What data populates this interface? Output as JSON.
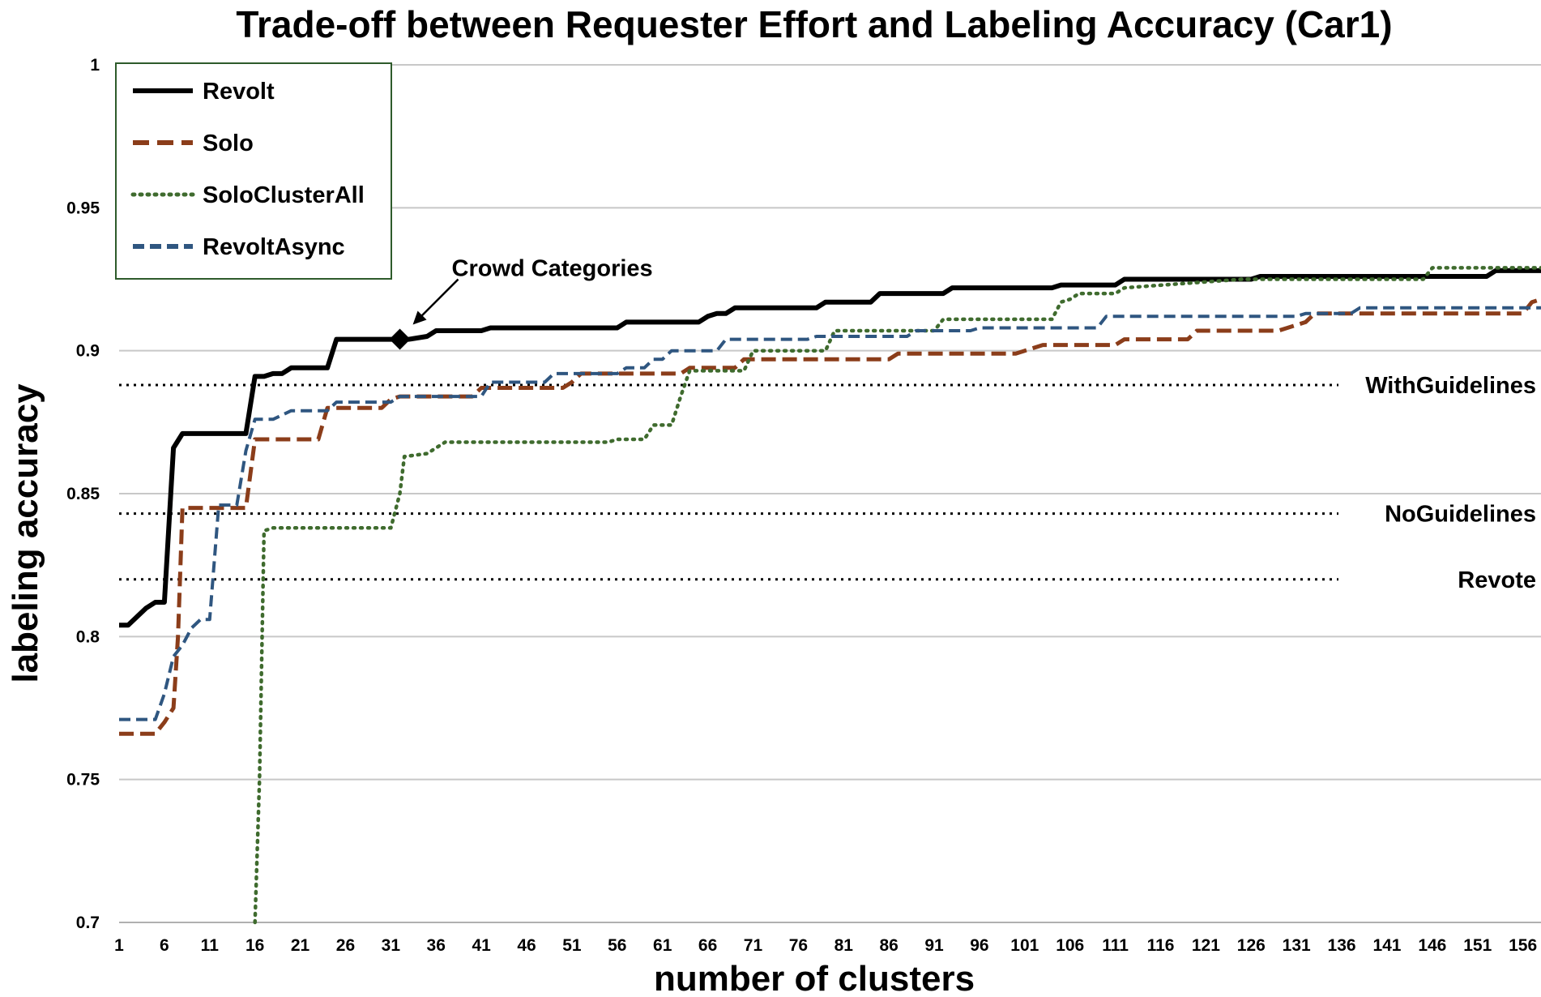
{
  "chart_data": {
    "type": "line",
    "title": "Trade-off between Requester Effort and Labeling Accuracy (Car1)",
    "xlabel": "number of clusters",
    "ylabel": "labeling accuracy",
    "xlim": [
      1,
      158
    ],
    "ylim": [
      0.7,
      1
    ],
    "x_ticks": [
      "1",
      "6",
      "11",
      "16",
      "21",
      "26",
      "31",
      "36",
      "41",
      "46",
      "51",
      "56",
      "61",
      "66",
      "71",
      "76",
      "81",
      "86",
      "91",
      "96",
      "101",
      "106",
      "111",
      "116",
      "121",
      "126",
      "131",
      "136",
      "141",
      "146",
      "151",
      "156"
    ],
    "y_ticks": [
      "0.7",
      "0.75",
      "0.8",
      "0.85",
      "0.9",
      "0.95",
      "1"
    ],
    "grid": "horizontal",
    "legend_position": "top-left",
    "series": [
      {
        "name": "Revolt",
        "color": "#000000",
        "style": "solid",
        "points": [
          [
            1,
            0.804
          ],
          [
            2,
            0.804
          ],
          [
            3,
            0.807
          ],
          [
            4,
            0.81
          ],
          [
            5,
            0.812
          ],
          [
            6,
            0.812
          ],
          [
            7,
            0.866
          ],
          [
            8,
            0.871
          ],
          [
            15,
            0.871
          ],
          [
            16,
            0.891
          ],
          [
            17,
            0.891
          ],
          [
            18,
            0.892
          ],
          [
            19,
            0.892
          ],
          [
            20,
            0.894
          ],
          [
            24,
            0.894
          ],
          [
            25,
            0.904
          ],
          [
            33,
            0.904
          ],
          [
            35,
            0.905
          ],
          [
            36,
            0.907
          ],
          [
            41,
            0.907
          ],
          [
            42,
            0.908
          ],
          [
            56,
            0.908
          ],
          [
            57,
            0.91
          ],
          [
            65,
            0.91
          ],
          [
            66,
            0.912
          ],
          [
            67,
            0.913
          ],
          [
            68,
            0.913
          ],
          [
            69,
            0.915
          ],
          [
            78,
            0.915
          ],
          [
            79,
            0.917
          ],
          [
            84,
            0.917
          ],
          [
            85,
            0.92
          ],
          [
            92,
            0.92
          ],
          [
            93,
            0.922
          ],
          [
            104,
            0.922
          ],
          [
            105,
            0.923
          ],
          [
            111,
            0.923
          ],
          [
            112,
            0.925
          ],
          [
            126,
            0.925
          ],
          [
            127,
            0.926
          ],
          [
            152,
            0.926
          ],
          [
            153,
            0.928
          ],
          [
            158,
            0.928
          ]
        ]
      },
      {
        "name": "Solo",
        "color": "#8b3d1a",
        "style": "dashed",
        "points": [
          [
            1,
            0.766
          ],
          [
            5,
            0.766
          ],
          [
            6,
            0.77
          ],
          [
            7,
            0.775
          ],
          [
            7.5,
            0.8
          ],
          [
            8,
            0.845
          ],
          [
            15,
            0.845
          ],
          [
            16,
            0.869
          ],
          [
            23,
            0.869
          ],
          [
            24,
            0.88
          ],
          [
            30,
            0.88
          ],
          [
            31,
            0.883
          ],
          [
            32,
            0.884
          ],
          [
            40,
            0.884
          ],
          [
            41,
            0.887
          ],
          [
            50,
            0.887
          ],
          [
            51,
            0.889
          ],
          [
            52,
            0.892
          ],
          [
            63,
            0.892
          ],
          [
            64,
            0.894
          ],
          [
            69,
            0.894
          ],
          [
            70,
            0.897
          ],
          [
            86,
            0.897
          ],
          [
            87,
            0.899
          ],
          [
            100,
            0.899
          ],
          [
            101,
            0.9
          ],
          [
            103,
            0.902
          ],
          [
            111,
            0.902
          ],
          [
            112,
            0.904
          ],
          [
            119,
            0.904
          ],
          [
            120,
            0.907
          ],
          [
            129,
            0.907
          ],
          [
            130,
            0.908
          ],
          [
            132,
            0.91
          ],
          [
            133,
            0.913
          ],
          [
            156,
            0.913
          ],
          [
            157,
            0.917
          ],
          [
            158,
            0.918
          ]
        ]
      },
      {
        "name": "SoloClusterAll",
        "color": "#3f6b2e",
        "style": "dotted",
        "points": [
          [
            16,
            0.7
          ],
          [
            16.5,
            0.75
          ],
          [
            17,
            0.837
          ],
          [
            18,
            0.838
          ],
          [
            31,
            0.838
          ],
          [
            32,
            0.85
          ],
          [
            32.5,
            0.863
          ],
          [
            35,
            0.864
          ],
          [
            36,
            0.866
          ],
          [
            37,
            0.868
          ],
          [
            55,
            0.868
          ],
          [
            56,
            0.869
          ],
          [
            59,
            0.869
          ],
          [
            60,
            0.874
          ],
          [
            62,
            0.874
          ],
          [
            63,
            0.884
          ],
          [
            64,
            0.893
          ],
          [
            70,
            0.893
          ],
          [
            71,
            0.9
          ],
          [
            79,
            0.9
          ],
          [
            80,
            0.907
          ],
          [
            91,
            0.907
          ],
          [
            92,
            0.911
          ],
          [
            104,
            0.911
          ],
          [
            105,
            0.917
          ],
          [
            106,
            0.918
          ],
          [
            107,
            0.92
          ],
          [
            111,
            0.92
          ],
          [
            112,
            0.922
          ],
          [
            125,
            0.925
          ],
          [
            145,
            0.925
          ],
          [
            146,
            0.929
          ],
          [
            158,
            0.929
          ]
        ]
      },
      {
        "name": "RevoltAsync",
        "color": "#2f5680",
        "style": "dashed",
        "points": [
          [
            1,
            0.771
          ],
          [
            5,
            0.771
          ],
          [
            6,
            0.78
          ],
          [
            7,
            0.793
          ],
          [
            8,
            0.797
          ],
          [
            9,
            0.803
          ],
          [
            10,
            0.806
          ],
          [
            11,
            0.806
          ],
          [
            12,
            0.846
          ],
          [
            14,
            0.846
          ],
          [
            15,
            0.865
          ],
          [
            16,
            0.876
          ],
          [
            18,
            0.876
          ],
          [
            20,
            0.879
          ],
          [
            24,
            0.879
          ],
          [
            25,
            0.882
          ],
          [
            31,
            0.882
          ],
          [
            32,
            0.884
          ],
          [
            41,
            0.884
          ],
          [
            42,
            0.889
          ],
          [
            48,
            0.889
          ],
          [
            49,
            0.892
          ],
          [
            56,
            0.892
          ],
          [
            57,
            0.894
          ],
          [
            59,
            0.894
          ],
          [
            60,
            0.897
          ],
          [
            61,
            0.897
          ],
          [
            62,
            0.9
          ],
          [
            67,
            0.9
          ],
          [
            68,
            0.904
          ],
          [
            77,
            0.904
          ],
          [
            78,
            0.905
          ],
          [
            88,
            0.905
          ],
          [
            89,
            0.907
          ],
          [
            95,
            0.907
          ],
          [
            96,
            0.908
          ],
          [
            109,
            0.908
          ],
          [
            110,
            0.912
          ],
          [
            131,
            0.912
          ],
          [
            132,
            0.913
          ],
          [
            137,
            0.913
          ],
          [
            138,
            0.915
          ],
          [
            158,
            0.915
          ]
        ]
      }
    ],
    "reference_lines": [
      {
        "label": "WithGuidelines",
        "y": 0.888
      },
      {
        "label": "NoGuidelines",
        "y": 0.843
      },
      {
        "label": "Revote",
        "y": 0.82
      }
    ],
    "annotations": [
      {
        "label": "Crowd Categories",
        "x": 32,
        "y": 0.904
      }
    ]
  }
}
